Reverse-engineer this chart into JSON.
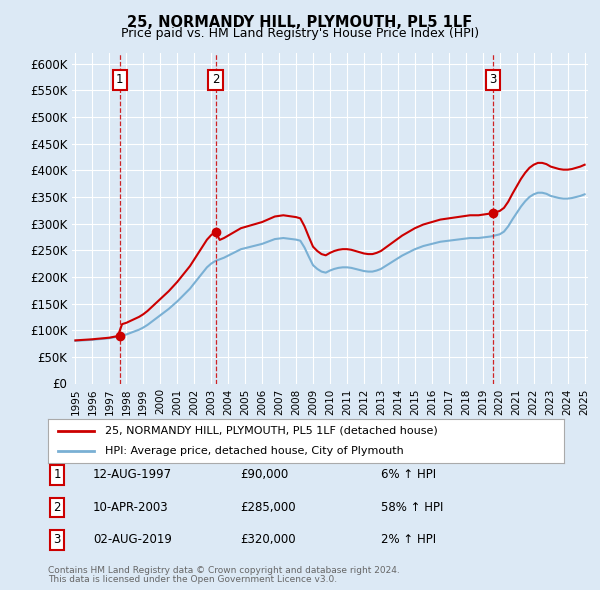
{
  "title": "25, NORMANDY HILL, PLYMOUTH, PL5 1LF",
  "subtitle": "Price paid vs. HM Land Registry's House Price Index (HPI)",
  "ylim": [
    0,
    620000
  ],
  "xlim_start": 1994.8,
  "xlim_end": 2025.2,
  "yticks": [
    0,
    50000,
    100000,
    150000,
    200000,
    250000,
    300000,
    350000,
    400000,
    450000,
    500000,
    550000,
    600000
  ],
  "ytick_labels": [
    "£0",
    "£50K",
    "£100K",
    "£150K",
    "£200K",
    "£250K",
    "£300K",
    "£350K",
    "£400K",
    "£450K",
    "£500K",
    "£550K",
    "£600K"
  ],
  "xticks": [
    1995,
    1996,
    1997,
    1998,
    1999,
    2000,
    2001,
    2002,
    2003,
    2004,
    2005,
    2006,
    2007,
    2008,
    2009,
    2010,
    2011,
    2012,
    2013,
    2014,
    2015,
    2016,
    2017,
    2018,
    2019,
    2020,
    2021,
    2022,
    2023,
    2024,
    2025
  ],
  "bg_color": "#dce9f5",
  "grid_color": "#ffffff",
  "sale_color": "#cc0000",
  "hpi_line_color": "#7ab0d4",
  "property_line_color": "#cc0000",
  "sales": [
    {
      "index": 1,
      "date": "12-AUG-1997",
      "price": 90000,
      "year": 1997.62,
      "pct": "6%",
      "direction": "↑"
    },
    {
      "index": 2,
      "date": "10-APR-2003",
      "price": 285000,
      "year": 2003.27,
      "pct": "58%",
      "direction": "↑"
    },
    {
      "index": 3,
      "date": "02-AUG-2019",
      "price": 320000,
      "year": 2019.59,
      "pct": "2%",
      "direction": "↑"
    }
  ],
  "legend_property_label": "25, NORMANDY HILL, PLYMOUTH, PL5 1LF (detached house)",
  "legend_hpi_label": "HPI: Average price, detached house, City of Plymouth",
  "footer1": "Contains HM Land Registry data © Crown copyright and database right 2024.",
  "footer2": "This data is licensed under the Open Government Licence v3.0."
}
